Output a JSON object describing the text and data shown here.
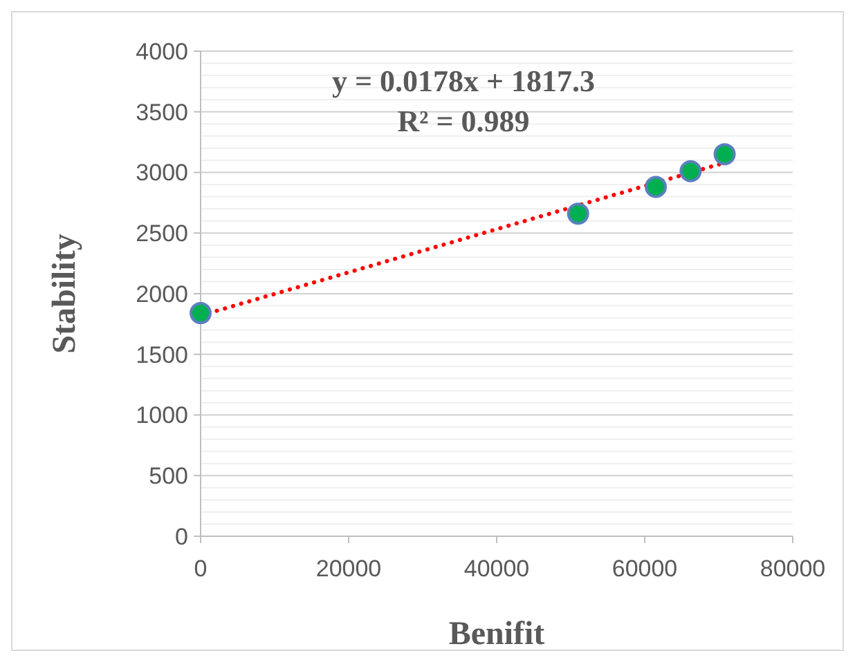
{
  "chart_data": {
    "type": "scatter",
    "xlabel": "Benifit",
    "ylabel": "Stability",
    "annotations": [
      "y = 0.0178x + 1817.3",
      "R² = 0.989"
    ],
    "series": [
      {
        "color": "#00b050",
        "x": [
          0,
          51000,
          61500,
          66200,
          70800
        ],
        "values": [
          1840,
          2660,
          2880,
          3010,
          3150
        ]
      },
      {
        "type": "line",
        "color": "#ff0000",
        "line_style": "dotted",
        "marker": "none",
        "x": [
          0,
          70800
        ],
        "values": [
          1820,
          3080
        ]
      }
    ],
    "xlim": [
      0,
      80000
    ],
    "xticks": [
      0,
      20000,
      40000,
      60000,
      80000
    ],
    "ylim": [
      0,
      4000
    ],
    "yticks": [
      0,
      500,
      1000,
      1500,
      2000,
      2500,
      3000,
      3500,
      4000
    ],
    "grid": "y",
    "marker": "circle"
  }
}
